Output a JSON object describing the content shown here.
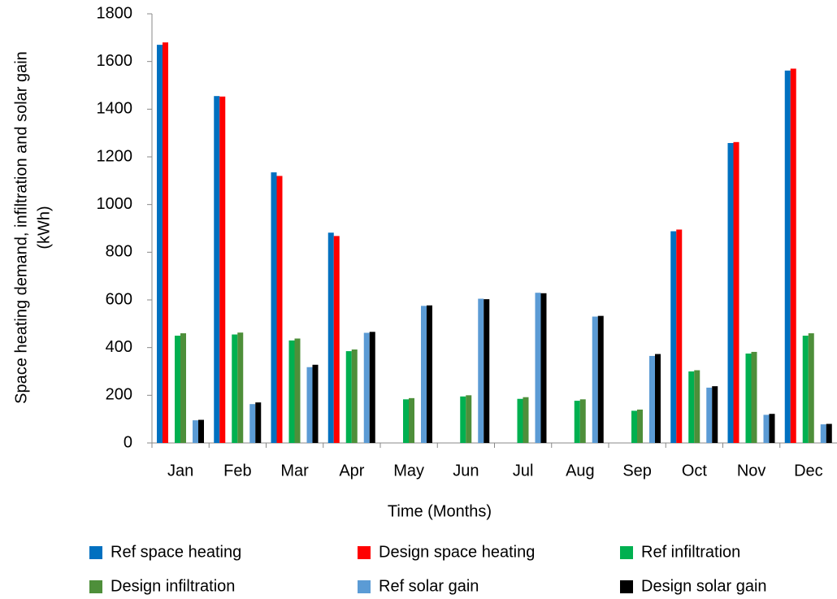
{
  "chart_data": {
    "type": "bar",
    "y_label": [
      "Space heating demand, infiltration and solar gain",
      "(kWh)"
    ],
    "x_label": "Time (Months)",
    "categories": [
      "Jan",
      "Feb",
      "Mar",
      "Apr",
      "May",
      "Jun",
      "Jul",
      "Aug",
      "Sep",
      "Oct",
      "Nov",
      "Dec"
    ],
    "series": [
      {
        "name": "Ref space heating",
        "color": "#0070c0",
        "values": [
          1670,
          1455,
          1135,
          882,
          0,
          0,
          0,
          0,
          0,
          888,
          1258,
          1562
        ]
      },
      {
        "name": "Design space heating",
        "color": "#ff0000",
        "values": [
          1680,
          1453,
          1120,
          868,
          0,
          0,
          0,
          0,
          0,
          895,
          1262,
          1570
        ]
      },
      {
        "name": "Ref infiltration",
        "color": "#00b050",
        "values": [
          450,
          455,
          430,
          385,
          183,
          195,
          185,
          177,
          135,
          300,
          375,
          450
        ]
      },
      {
        "name": "Design infiltration",
        "color": "#4e8f3a",
        "values": [
          460,
          463,
          438,
          392,
          188,
          200,
          192,
          183,
          140,
          305,
          382,
          460
        ]
      },
      {
        "name": "Ref solar gain",
        "color": "#5b9bd5",
        "values": [
          95,
          163,
          318,
          462,
          575,
          605,
          630,
          530,
          365,
          232,
          118,
          78
        ]
      },
      {
        "name": "Design solar gain",
        "color": "#000000",
        "values": [
          97,
          170,
          328,
          466,
          577,
          603,
          628,
          533,
          373,
          238,
          122,
          80
        ]
      }
    ],
    "ylim": [
      0,
      1800
    ],
    "yticks": [
      0,
      200,
      400,
      600,
      800,
      1000,
      1200,
      1400,
      1600,
      1800
    ]
  }
}
